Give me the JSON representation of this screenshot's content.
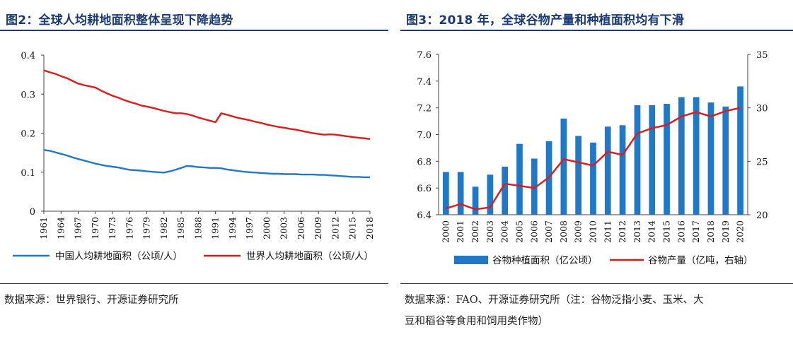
{
  "left": {
    "title": "图2：全球人均耕地面积整体呈现下降趋势",
    "source": "数据来源：世界银行、开源证券研究所",
    "chart_data": {
      "type": "line",
      "x": [
        1961,
        1962,
        1963,
        1964,
        1965,
        1966,
        1967,
        1968,
        1969,
        1970,
        1971,
        1972,
        1973,
        1974,
        1975,
        1976,
        1977,
        1978,
        1979,
        1980,
        1981,
        1982,
        1983,
        1984,
        1985,
        1986,
        1987,
        1988,
        1989,
        1990,
        1991,
        1992,
        1993,
        1994,
        1995,
        1996,
        1997,
        1998,
        1999,
        2000,
        2001,
        2002,
        2003,
        2004,
        2005,
        2006,
        2007,
        2008,
        2009,
        2010,
        2011,
        2012,
        2013,
        2014,
        2015,
        2016,
        2017,
        2018
      ],
      "x_ticks": [
        1961,
        1964,
        1967,
        1970,
        1973,
        1976,
        1979,
        1982,
        1985,
        1988,
        1991,
        1994,
        1997,
        2000,
        2003,
        2006,
        2009,
        2012,
        2015,
        2018
      ],
      "ylim": [
        0,
        0.4
      ],
      "y_ticks": [
        0,
        0.1,
        0.2,
        0.3,
        0.4
      ],
      "series": [
        {
          "name": "中国人均耕地面积（公顷/人）",
          "color": "#1f78c8",
          "values": [
            0.157,
            0.155,
            0.151,
            0.147,
            0.143,
            0.138,
            0.134,
            0.13,
            0.126,
            0.122,
            0.119,
            0.116,
            0.114,
            0.112,
            0.109,
            0.106,
            0.105,
            0.104,
            0.102,
            0.101,
            0.1,
            0.099,
            0.102,
            0.106,
            0.111,
            0.116,
            0.115,
            0.113,
            0.112,
            0.111,
            0.111,
            0.11,
            0.107,
            0.105,
            0.103,
            0.101,
            0.1,
            0.099,
            0.098,
            0.097,
            0.096,
            0.096,
            0.095,
            0.095,
            0.095,
            0.094,
            0.094,
            0.094,
            0.093,
            0.093,
            0.092,
            0.091,
            0.09,
            0.089,
            0.088,
            0.088,
            0.087,
            0.087
          ]
        },
        {
          "name": "世界人均耕地面积（公顷/人）",
          "color": "#e01a1a",
          "values": [
            0.361,
            0.356,
            0.352,
            0.346,
            0.341,
            0.334,
            0.327,
            0.323,
            0.32,
            0.317,
            0.309,
            0.302,
            0.296,
            0.291,
            0.285,
            0.28,
            0.276,
            0.271,
            0.268,
            0.265,
            0.261,
            0.257,
            0.254,
            0.251,
            0.251,
            0.249,
            0.245,
            0.24,
            0.236,
            0.232,
            0.228,
            0.251,
            0.247,
            0.243,
            0.239,
            0.236,
            0.233,
            0.229,
            0.226,
            0.222,
            0.219,
            0.216,
            0.214,
            0.211,
            0.209,
            0.206,
            0.203,
            0.2,
            0.198,
            0.196,
            0.197,
            0.196,
            0.194,
            0.192,
            0.19,
            0.188,
            0.187,
            0.185
          ]
        }
      ]
    }
  },
  "right": {
    "title": "图3：2018 年，全球谷物产量和种植面积均有下滑",
    "source_line1": "数据来源：FAO、开源证券研究所（注：谷物泛指小麦、玉米、大",
    "source_line2": "豆和稻谷等食用和饲用类作物）",
    "chart_data": {
      "type": "bar",
      "categories": [
        "2000",
        "2001",
        "2002",
        "2003",
        "2004",
        "2005",
        "2006",
        "2007",
        "2008",
        "2009",
        "2010",
        "2011",
        "2012",
        "2013",
        "2014",
        "2015",
        "2016",
        "2017",
        "2018",
        "2019",
        "2020"
      ],
      "ylim_left": [
        6.4,
        7.6
      ],
      "y_ticks_left": [
        6.4,
        6.6,
        6.8,
        7.0,
        7.2,
        7.4,
        7.6
      ],
      "ylim_right": [
        20,
        35
      ],
      "y_ticks_right": [
        20,
        25,
        30,
        35
      ],
      "series": [
        {
          "name": "谷物种植面积（亿公顷）",
          "type": "bar",
          "axis": "left",
          "color": "#1f78c8",
          "values": [
            6.72,
            6.72,
            6.61,
            6.7,
            6.76,
            6.93,
            6.82,
            6.95,
            7.12,
            6.99,
            6.94,
            7.06,
            7.07,
            7.22,
            7.22,
            7.23,
            7.28,
            7.28,
            7.24,
            7.21,
            7.36
          ]
        },
        {
          "name": "谷物产量（亿吨，右轴）",
          "type": "line",
          "axis": "right",
          "color": "#e01a1a",
          "values": [
            20.6,
            21.0,
            20.5,
            20.7,
            22.9,
            22.7,
            22.5,
            23.5,
            25.2,
            24.9,
            24.6,
            25.9,
            25.6,
            27.6,
            28.1,
            28.4,
            29.2,
            29.6,
            29.2,
            29.7,
            30.0
          ]
        }
      ]
    }
  }
}
